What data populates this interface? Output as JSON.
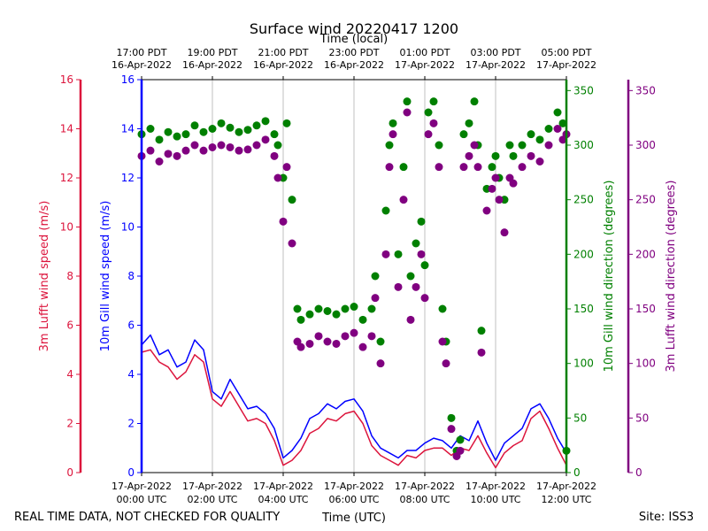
{
  "chart_data": {
    "type": "line",
    "title": "Surface wind 20220417 1200",
    "xlabel": "Time (UTC)",
    "xlabel_top": "Time (local)",
    "footer_left": "REAL TIME DATA, NOT CHECKED FOR QUALITY",
    "footer_right": "Site: ISS3",
    "x_range_hours": [
      0,
      12
    ],
    "bottom_ticks": [
      {
        "h": 0,
        "line1": "17-Apr-2022",
        "line2": "00:00 UTC"
      },
      {
        "h": 2,
        "line1": "17-Apr-2022",
        "line2": "02:00 UTC"
      },
      {
        "h": 4,
        "line1": "17-Apr-2022",
        "line2": "04:00 UTC"
      },
      {
        "h": 6,
        "line1": "17-Apr-2022",
        "line2": "06:00 UTC"
      },
      {
        "h": 8,
        "line1": "17-Apr-2022",
        "line2": "08:00 UTC"
      },
      {
        "h": 10,
        "line1": "17-Apr-2022",
        "line2": "10:00 UTC"
      },
      {
        "h": 12,
        "line1": "17-Apr-2022",
        "line2": "12:00 UTC"
      }
    ],
    "top_ticks": [
      {
        "h": 0,
        "line1": "17:00 PDT",
        "line2": "16-Apr-2022"
      },
      {
        "h": 2,
        "line1": "19:00 PDT",
        "line2": "16-Apr-2022"
      },
      {
        "h": 4,
        "line1": "21:00 PDT",
        "line2": "16-Apr-2022"
      },
      {
        "h": 6,
        "line1": "23:00 PDT",
        "line2": "16-Apr-2022"
      },
      {
        "h": 8,
        "line1": "01:00 PDT",
        "line2": "17-Apr-2022"
      },
      {
        "h": 10,
        "line1": "03:00 PDT",
        "line2": "17-Apr-2022"
      },
      {
        "h": 12,
        "line1": "05:00 PDT",
        "line2": "17-Apr-2022"
      }
    ],
    "axes": {
      "lufft_speed": {
        "label": "3m Lufft wind speed (m/s)",
        "color": "#dc143c",
        "range": [
          0,
          16
        ],
        "ticks": [
          "0",
          "2",
          "4",
          "6",
          "8",
          "10",
          "12",
          "14",
          "16"
        ]
      },
      "gill_speed": {
        "label": "10m Gill wind speed (m/s)",
        "color": "#0000ff",
        "range": [
          0,
          16
        ],
        "ticks": [
          "0",
          "2",
          "4",
          "6",
          "8",
          "10",
          "12",
          "14",
          "16"
        ]
      },
      "gill_dir": {
        "label": "10m Gill wind direction (degrees)",
        "color": "#008000",
        "range": [
          0,
          360
        ],
        "ticks": [
          "0",
          "50",
          "100",
          "150",
          "200",
          "250",
          "300",
          "350"
        ]
      },
      "lufft_dir": {
        "label": "3m Lufft wind direction (degrees)",
        "color": "#800080",
        "range": [
          0,
          360
        ],
        "ticks": [
          "0",
          "50",
          "100",
          "150",
          "200",
          "250",
          "300",
          "350"
        ]
      }
    },
    "series": [
      {
        "name": "10m Gill wind speed",
        "axis": "gill_speed",
        "style": "line",
        "color": "#0000ff",
        "x": [
          0,
          0.25,
          0.5,
          0.75,
          1,
          1.25,
          1.5,
          1.75,
          2,
          2.25,
          2.5,
          2.75,
          3,
          3.25,
          3.5,
          3.75,
          4,
          4.25,
          4.5,
          4.75,
          5,
          5.25,
          5.5,
          5.75,
          6,
          6.25,
          6.5,
          6.75,
          7,
          7.25,
          7.5,
          7.75,
          8,
          8.25,
          8.5,
          8.75,
          9,
          9.25,
          9.5,
          9.75,
          10,
          10.25,
          10.5,
          10.75,
          11,
          11.25,
          11.5,
          11.75,
          12
        ],
        "values": [
          5.2,
          5.6,
          4.8,
          5.0,
          4.3,
          4.5,
          5.4,
          5.0,
          3.3,
          3.0,
          3.8,
          3.2,
          2.6,
          2.7,
          2.4,
          1.8,
          0.6,
          0.9,
          1.4,
          2.2,
          2.4,
          2.8,
          2.6,
          2.9,
          3.0,
          2.5,
          1.5,
          1.0,
          0.8,
          0.6,
          0.9,
          0.9,
          1.2,
          1.4,
          1.3,
          1.0,
          1.5,
          1.3,
          2.1,
          1.2,
          0.5,
          1.2,
          1.5,
          1.8,
          2.6,
          2.8,
          2.2,
          1.4,
          0.8
        ]
      },
      {
        "name": "3m Lufft wind speed",
        "axis": "lufft_speed",
        "style": "line",
        "color": "#dc143c",
        "x": [
          0,
          0.25,
          0.5,
          0.75,
          1,
          1.25,
          1.5,
          1.75,
          2,
          2.25,
          2.5,
          2.75,
          3,
          3.25,
          3.5,
          3.75,
          4,
          4.25,
          4.5,
          4.75,
          5,
          5.25,
          5.5,
          5.75,
          6,
          6.25,
          6.5,
          6.75,
          7,
          7.25,
          7.5,
          7.75,
          8,
          8.25,
          8.5,
          8.75,
          9,
          9.25,
          9.5,
          9.75,
          10,
          10.25,
          10.5,
          10.75,
          11,
          11.25,
          11.5,
          11.75,
          12
        ],
        "values": [
          4.9,
          5.0,
          4.5,
          4.3,
          3.8,
          4.1,
          4.8,
          4.5,
          3.0,
          2.7,
          3.3,
          2.7,
          2.1,
          2.2,
          2.0,
          1.3,
          0.3,
          0.5,
          0.9,
          1.6,
          1.8,
          2.2,
          2.1,
          2.4,
          2.5,
          2.0,
          1.1,
          0.7,
          0.5,
          0.3,
          0.7,
          0.6,
          0.9,
          1.0,
          1.0,
          0.7,
          1.0,
          0.9,
          1.5,
          0.8,
          0.2,
          0.8,
          1.1,
          1.3,
          2.2,
          2.5,
          1.8,
          1.0,
          0.3
        ]
      },
      {
        "name": "10m Gill wind direction",
        "axis": "gill_dir",
        "style": "scatter",
        "color": "#008000",
        "x": [
          0,
          0.25,
          0.5,
          0.75,
          1,
          1.25,
          1.5,
          1.75,
          2,
          2.25,
          2.5,
          2.75,
          3,
          3.25,
          3.5,
          3.75,
          3.85,
          4,
          4.1,
          4.25,
          4.4,
          4.5,
          4.75,
          5,
          5.25,
          5.5,
          5.75,
          6,
          6.25,
          6.5,
          6.6,
          6.75,
          6.9,
          7.0,
          7.1,
          7.25,
          7.4,
          7.5,
          7.6,
          7.75,
          7.9,
          8.0,
          8.1,
          8.25,
          8.4,
          8.5,
          8.6,
          8.75,
          8.9,
          9.0,
          9.1,
          9.25,
          9.4,
          9.5,
          9.6,
          9.75,
          9.9,
          10.0,
          10.1,
          10.25,
          10.4,
          10.5,
          10.75,
          11,
          11.25,
          11.5,
          11.75,
          11.9,
          12
        ],
        "values": [
          310,
          315,
          305,
          312,
          308,
          310,
          318,
          312,
          315,
          320,
          316,
          312,
          314,
          318,
          322,
          310,
          300,
          270,
          320,
          250,
          150,
          140,
          145,
          150,
          148,
          145,
          150,
          152,
          140,
          150,
          180,
          120,
          240,
          300,
          320,
          200,
          280,
          340,
          180,
          210,
          230,
          190,
          330,
          340,
          300,
          150,
          120,
          50,
          20,
          30,
          310,
          320,
          340,
          300,
          130,
          260,
          280,
          290,
          270,
          250,
          300,
          290,
          300,
          310,
          305,
          315,
          330,
          320,
          20
        ]
      },
      {
        "name": "3m Lufft wind direction",
        "axis": "lufft_dir",
        "style": "scatter",
        "color": "#800080",
        "x": [
          0,
          0.25,
          0.5,
          0.75,
          1,
          1.25,
          1.5,
          1.75,
          2,
          2.25,
          2.5,
          2.75,
          3,
          3.25,
          3.5,
          3.75,
          3.85,
          4,
          4.1,
          4.25,
          4.4,
          4.5,
          4.75,
          5,
          5.25,
          5.5,
          5.75,
          6,
          6.25,
          6.5,
          6.6,
          6.75,
          6.9,
          7.0,
          7.1,
          7.25,
          7.4,
          7.5,
          7.6,
          7.75,
          7.9,
          8.0,
          8.1,
          8.25,
          8.4,
          8.5,
          8.6,
          8.75,
          8.9,
          9.0,
          9.1,
          9.25,
          9.4,
          9.5,
          9.6,
          9.75,
          9.9,
          10.0,
          10.1,
          10.25,
          10.4,
          10.5,
          10.75,
          11,
          11.25,
          11.5,
          11.75,
          11.9,
          12
        ],
        "values": [
          290,
          295,
          285,
          292,
          290,
          295,
          300,
          295,
          298,
          300,
          298,
          295,
          296,
          300,
          305,
          290,
          270,
          230,
          280,
          210,
          120,
          115,
          118,
          125,
          120,
          118,
          125,
          128,
          115,
          125,
          160,
          100,
          200,
          280,
          310,
          170,
          250,
          330,
          140,
          170,
          200,
          160,
          310,
          320,
          280,
          120,
          100,
          40,
          15,
          20,
          280,
          290,
          300,
          280,
          110,
          240,
          260,
          270,
          250,
          220,
          270,
          265,
          280,
          290,
          285,
          300,
          315,
          305,
          310
        ]
      }
    ]
  }
}
